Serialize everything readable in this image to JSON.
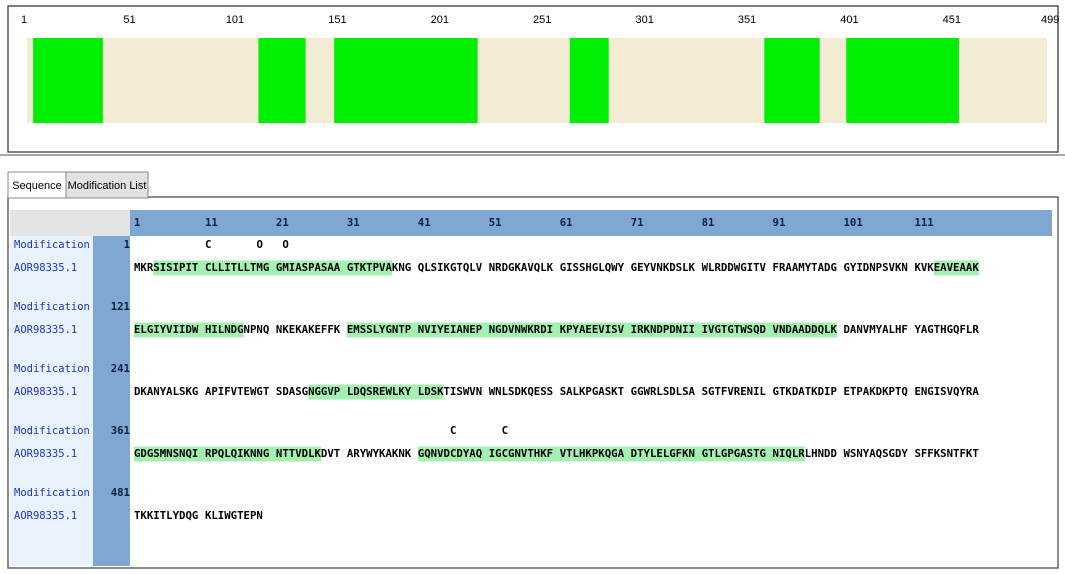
{
  "ruler": {
    "xlim": [
      1,
      499
    ],
    "ticks": [
      1,
      51,
      101,
      151,
      201,
      251,
      301,
      351,
      401,
      451,
      499
    ]
  },
  "coverage": [
    {
      "start": 4,
      "end": 37
    },
    {
      "start": 114,
      "end": 136
    },
    {
      "start": 151,
      "end": 220
    },
    {
      "start": 266,
      "end": 284
    },
    {
      "start": 361,
      "end": 387
    },
    {
      "start": 401,
      "end": 455
    }
  ],
  "tabs": [
    "Sequence",
    "Modification List"
  ],
  "sequence_header": [
    1,
    11,
    21,
    31,
    41,
    51,
    61,
    71,
    81,
    91,
    101,
    111
  ],
  "rows": [
    {
      "label": "Modification",
      "number": 1,
      "protein": "AOR98335.1",
      "blocks": [
        "MKRSISIPIT",
        "CLLITLLTMG",
        "GMIASPASAA",
        "GTKTPVAKNG",
        "QLSIKGTQLV",
        "NRDGKAVQLK",
        "GISSHGLQWY",
        "GEYVNKDSLK",
        "WLRDDWGITV",
        "FRAAMYTADG",
        "GYIDNPSVKN",
        "KVKEAVEAAK"
      ],
      "modifications": [
        {
          "position": 11,
          "symbol": "C"
        },
        {
          "position": 19,
          "symbol": "O"
        },
        {
          "position": 22,
          "symbol": "O"
        }
      ]
    },
    {
      "label": "Modification",
      "number": 121,
      "protein": "AOR98335.1",
      "blocks": [
        "ELGIYVIIDW",
        "HILNDGNPNQ",
        "NKEKAKEFFK",
        "EMSSLYGNTP",
        "NVIYEIANEP",
        "NGDVNWKRDI",
        "KPYAEEVISV",
        "IRKNDPDNII",
        "IVGTGTWSQD",
        "VNDAADDQLK",
        "DANVMYALHF",
        "YAGTHGQFLR"
      ],
      "modifications": []
    },
    {
      "label": "Modification",
      "number": 241,
      "protein": "AOR98335.1",
      "blocks": [
        "DKANYALSKG",
        "APIFVTEWGT",
        "SDASGNGGVP",
        "LDQSREWLKY",
        "LDSKTISWVN",
        "WNLSDKQESS",
        "SALKPGASKT",
        "GGWRLSDLSA",
        "SGTFVRENIL",
        "GTKDATKDIP",
        "ETPAKDKPTQ",
        "ENGISVQYRA"
      ],
      "modifications": []
    },
    {
      "label": "Modification",
      "number": 361,
      "protein": "AOR98335.1",
      "blocks": [
        "GDGSMNSNQI",
        "RPQLQIKNNG",
        "NTTVDLKDVT",
        "ARYWYKAKNK",
        "GQNVDCDYAQ",
        "IGCGNVTHKF",
        "VTLHKPKQGA",
        "DTYLELGFKN",
        "GTLGPGASTG",
        "NIQLRLHNDD",
        "WSNYAQSGDY",
        "SFFKSNTFKT"
      ],
      "modifications": [
        {
          "position": 406,
          "symbol": "C"
        },
        {
          "position": 413,
          "symbol": "C"
        }
      ]
    },
    {
      "label": "Modification",
      "number": 481,
      "protein": "AOR98335.1",
      "blocks": [
        "TKKITLYDQG",
        "KLIWGTEPN"
      ],
      "modifications": []
    }
  ]
}
